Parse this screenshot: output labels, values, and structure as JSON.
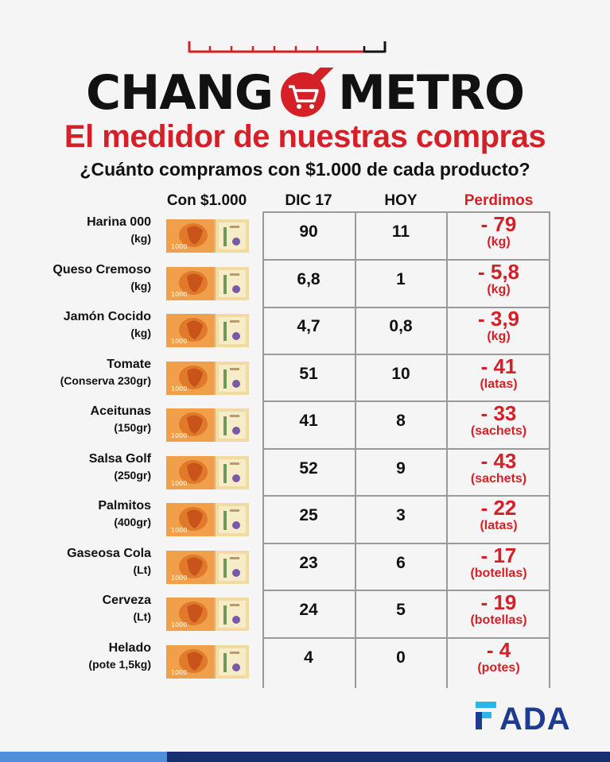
{
  "header": {
    "logo_left": "CHANG",
    "logo_right": "METRO",
    "subtitle": "El medidor de nuestras compras",
    "question": "¿Cuánto compramos con $1.000 de cada producto?"
  },
  "table": {
    "headers": {
      "con": "Con $1.000",
      "dic": "DIC 17",
      "hoy": "HOY",
      "perdimos": "Perdimos"
    },
    "bill_label": "1000",
    "rows": [
      {
        "name": "Harina 000",
        "unit": "(kg)",
        "dic": "90",
        "hoy": "11",
        "loss": "- 79",
        "loss_unit": "(kg)"
      },
      {
        "name": "Queso Cremoso",
        "unit": "(kg)",
        "dic": "6,8",
        "hoy": "1",
        "loss": "- 5,8",
        "loss_unit": "(kg)"
      },
      {
        "name": "Jamón Cocido",
        "unit": "(kg)",
        "dic": "4,7",
        "hoy": "0,8",
        "loss": "- 3,9",
        "loss_unit": "(kg)"
      },
      {
        "name": "Tomate",
        "unit": "(Conserva 230gr)",
        "dic": "51",
        "hoy": "10",
        "loss": "- 41",
        "loss_unit": "(latas)"
      },
      {
        "name": "Aceitunas",
        "unit": "(150gr)",
        "dic": "41",
        "hoy": "8",
        "loss": "- 33",
        "loss_unit": "(sachets)"
      },
      {
        "name": "Salsa Golf",
        "unit": "(250gr)",
        "dic": "52",
        "hoy": "9",
        "loss": "- 43",
        "loss_unit": "(sachets)"
      },
      {
        "name": "Palmitos",
        "unit": "(400gr)",
        "dic": "25",
        "hoy": "3",
        "loss": "- 22",
        "loss_unit": "(latas)"
      },
      {
        "name": "Gaseosa Cola",
        "unit": "(Lt)",
        "dic": "23",
        "hoy": "6",
        "loss": "- 17",
        "loss_unit": "(botellas)"
      },
      {
        "name": "Cerveza",
        "unit": "(Lt)",
        "dic": "24",
        "hoy": "5",
        "loss": "- 19",
        "loss_unit": "(botellas)"
      },
      {
        "name": "Helado",
        "unit": "(pote 1,5kg)",
        "dic": "4",
        "hoy": "0",
        "loss": "- 4",
        "loss_unit": "(potes)"
      }
    ]
  },
  "footer": {
    "brand": "FADA"
  },
  "colors": {
    "accent_red": "#d42026",
    "brand_blue": "#1e3c8f",
    "bill_orange": "#f0a04a"
  }
}
